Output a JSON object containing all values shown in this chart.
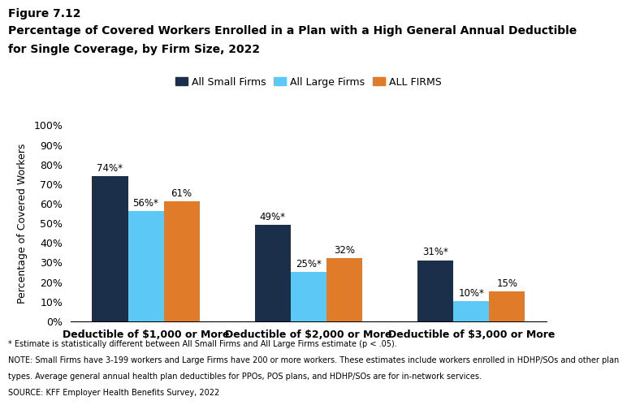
{
  "figure_label": "Figure 7.12",
  "title_line1": "Percentage of Covered Workers Enrolled in a Plan with a High General Annual Deductible",
  "title_line2": "for Single Coverage, by Firm Size, 2022",
  "categories": [
    "Deductible of $1,000 or More",
    "Deductible of $2,000 or More",
    "Deductible of $3,000 or More"
  ],
  "series": [
    {
      "name": "All Small Firms",
      "color": "#1b2f4b",
      "values": [
        74,
        49,
        31
      ]
    },
    {
      "name": "All Large Firms",
      "color": "#5bc8f5",
      "values": [
        56,
        25,
        10
      ]
    },
    {
      "name": "ALL FIRMS",
      "color": "#e07b2a",
      "values": [
        61,
        32,
        15
      ]
    }
  ],
  "bar_labels": [
    [
      "74%*",
      "56%*",
      "61%"
    ],
    [
      "49%*",
      "25%*",
      "32%"
    ],
    [
      "31%*",
      "10%*",
      "15%"
    ]
  ],
  "ylabel": "Percentage of Covered Workers",
  "ylim": [
    0,
    100
  ],
  "yticks": [
    0,
    10,
    20,
    30,
    40,
    50,
    60,
    70,
    80,
    90,
    100
  ],
  "ytick_labels": [
    "0%",
    "10%",
    "20%",
    "30%",
    "40%",
    "50%",
    "60%",
    "70%",
    "80%",
    "90%",
    "100%"
  ],
  "footnote1": "* Estimate is statistically different between All Small Firms and All Large Firms estimate (p < .05).",
  "footnote2": "NOTE: Small Firms have 3-199 workers and Large Firms have 200 or more workers. These estimates include workers enrolled in HDHP/SOs and other plan",
  "footnote3": "types. Average general annual health plan deductibles for PPOs, POS plans, and HDHP/SOs are for in-network services.",
  "footnote4": "SOURCE: KFF Employer Health Benefits Survey, 2022",
  "background_color": "#ffffff",
  "bar_width": 0.22,
  "label_fontsize": 8.5,
  "tick_fontsize": 9,
  "ylabel_fontsize": 9,
  "footnote_fontsize": 7,
  "title_fontsize": 10,
  "xticklabel_fontsize": 9
}
